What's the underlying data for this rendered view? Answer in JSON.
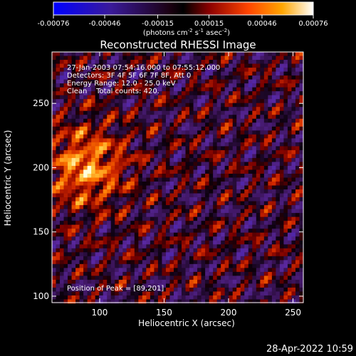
{
  "colorbar": {
    "ticks": [
      "-0.00076",
      "-0.00046",
      "-0.00015",
      "0.00015",
      "0.00046",
      "0.00076"
    ],
    "tick_values": [
      -0.00076,
      -0.00046,
      -0.00015,
      0.00015,
      0.00046,
      0.00076
    ],
    "units_prefix": "(photons cm",
    "units_exp1": "-2",
    "units_mid": " s",
    "units_exp2": "-1",
    "units_suffix": " asec",
    "units_exp3": "-2",
    "units_close": ")",
    "colors": [
      "#0000ff",
      "#4b0082",
      "#000000",
      "#8b0000",
      "#ff4500",
      "#ffa500",
      "#ffff80",
      "#ffffff"
    ]
  },
  "chart_data": {
    "type": "heatmap",
    "title": "Reconstructed RHESSI Image",
    "xlabel": "Heliocentric X (arcsec)",
    "ylabel": "Heliocentric Y (arcsec)",
    "xlim": [
      63,
      258
    ],
    "ylim": [
      95,
      290
    ],
    "xticks": [
      100,
      150,
      200,
      250
    ],
    "yticks": [
      100,
      150,
      200,
      250
    ],
    "info_lines": [
      "27-Jan-2003 07:54:16.000 to 07:55:12.000",
      "Detectors: 3F 4F 5F 6F 7F 8F, Att 0",
      "Energy Range: 12.0 - 25.0 keV",
      "Clean    Total counts: 420."
    ],
    "peak_text": "Position of Peak = [89,201]",
    "peak": [
      89,
      201
    ],
    "grid": false
  },
  "footer": {
    "timestamp": "28-Apr-2022 10:59"
  }
}
